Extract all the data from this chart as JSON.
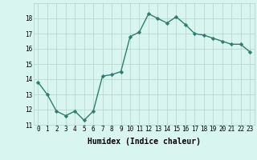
{
  "x": [
    0,
    1,
    2,
    3,
    4,
    5,
    6,
    7,
    8,
    9,
    10,
    11,
    12,
    13,
    14,
    15,
    16,
    17,
    18,
    19,
    20,
    21,
    22,
    23
  ],
  "y": [
    13.8,
    13.0,
    11.9,
    11.6,
    11.9,
    11.3,
    11.9,
    14.2,
    14.3,
    14.5,
    16.8,
    17.1,
    18.3,
    18.0,
    17.7,
    18.1,
    17.6,
    17.0,
    16.9,
    16.7,
    16.5,
    16.3,
    16.3,
    15.8
  ],
  "line_color": "#2e7d6e",
  "marker": "D",
  "marker_size": 2.2,
  "bg_color": "#d8f5f0",
  "grid_color": "#b8d8d2",
  "xlabel": "Humidex (Indice chaleur)",
  "ylim": [
    11,
    19
  ],
  "xlim": [
    -0.5,
    23.5
  ],
  "yticks": [
    11,
    12,
    13,
    14,
    15,
    16,
    17,
    18
  ],
  "xticks": [
    0,
    1,
    2,
    3,
    4,
    5,
    6,
    7,
    8,
    9,
    10,
    11,
    12,
    13,
    14,
    15,
    16,
    17,
    18,
    19,
    20,
    21,
    22,
    23
  ],
  "tick_fontsize": 5.5,
  "xlabel_fontsize": 7.0,
  "line_width": 1.0
}
